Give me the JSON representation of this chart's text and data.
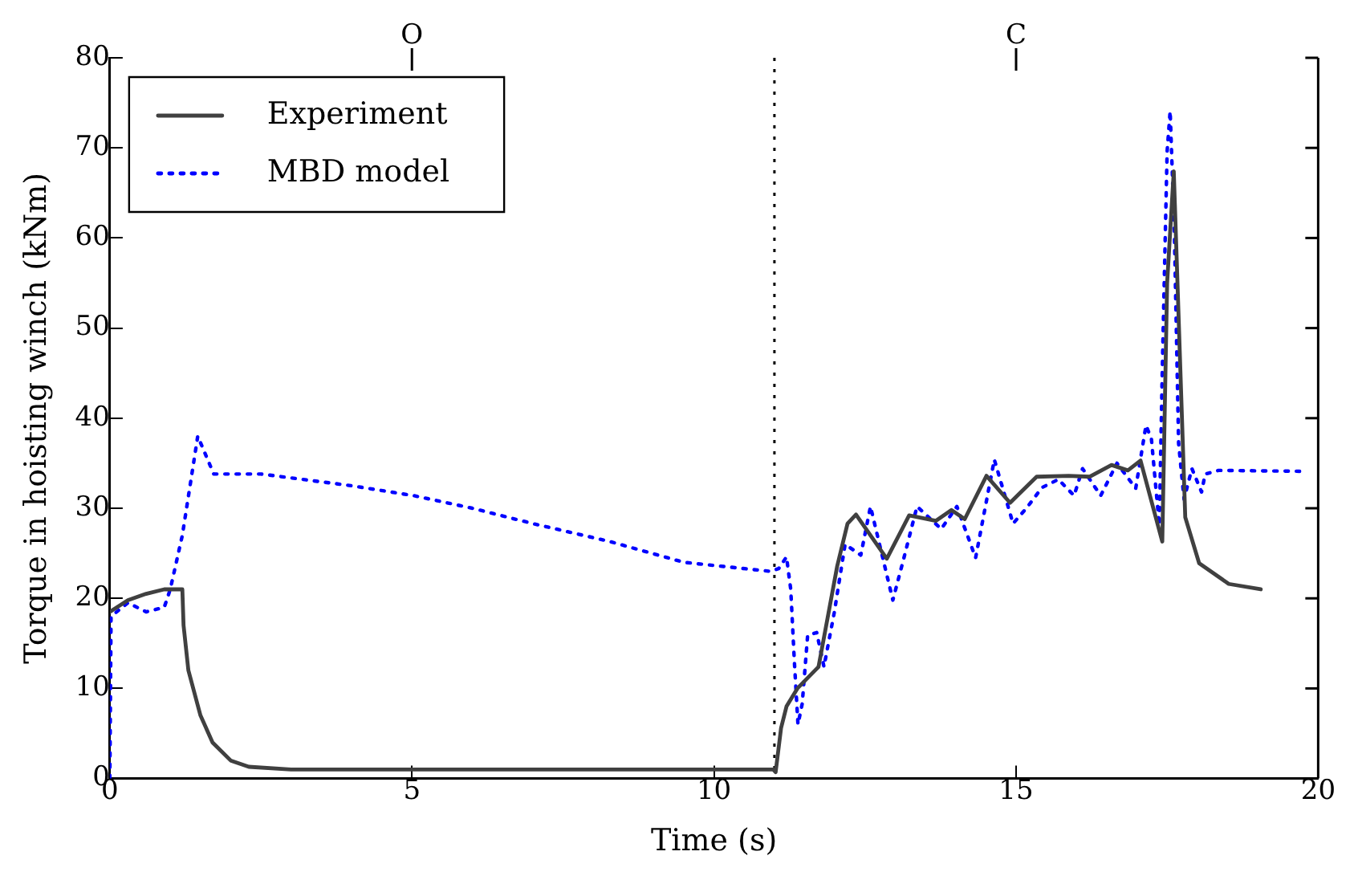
{
  "chart_data": {
    "type": "line",
    "xlabel": "Time (s)",
    "ylabel": "Torque in hoisting winch (kNm)",
    "xlim": [
      0,
      20
    ],
    "xticks": [
      0,
      5,
      10,
      15,
      20
    ],
    "ylim": [
      0,
      80
    ],
    "yticks": [
      0,
      10,
      20,
      30,
      40,
      50,
      60,
      70,
      80
    ],
    "annotations": [
      "O",
      "C"
    ],
    "grid": false,
    "legend": "top left",
    "marker": "none",
    "ref_lines": [
      {
        "axis": "x",
        "value": 11,
        "label": null,
        "color": "#000000",
        "line_style": "dotted"
      }
    ],
    "series": [
      {
        "name": "Experiment",
        "color": "#404040",
        "line_style": "solid",
        "x": [
          0,
          0.3,
          0.6,
          0.9,
          1.0,
          1.2,
          1.22,
          1.3,
          1.5,
          1.7,
          2.0,
          2.3,
          3,
          5,
          8,
          10,
          10.98,
          11.02,
          11.11,
          11.2,
          11.38,
          11.73,
          12.04,
          12.21,
          12.35,
          12.86,
          13.23,
          13.67,
          13.93,
          14.15,
          14.51,
          14.9,
          15.34,
          15.87,
          16.22,
          16.58,
          16.85,
          17.06,
          17.42,
          17.5,
          17.61,
          17.8,
          18.03,
          18.52,
          19.05
        ],
        "values": [
          18.5,
          19.8,
          20.5,
          21,
          21,
          21,
          17,
          12,
          7,
          4,
          2,
          1.3,
          1,
          1,
          1,
          1,
          1,
          0.7,
          5.6,
          8,
          10,
          12.4,
          23.6,
          28.3,
          29.3,
          24.4,
          29.2,
          28.6,
          29.8,
          28.8,
          33.6,
          30.6,
          33.5,
          33.6,
          33.5,
          34.8,
          34.2,
          35.3,
          26.3,
          55,
          67.4,
          29,
          23.9,
          21.6,
          21
        ]
      },
      {
        "name": "MBD model",
        "color": "#0000ff",
        "line_style": "dotted",
        "x": [
          0,
          0.02,
          0.3,
          0.6,
          0.9,
          1.0,
          1.2,
          1.455,
          1.72,
          2.5,
          4,
          5.03,
          6,
          7,
          8.28,
          9.5,
          10.93,
          11.07,
          11.2,
          11.27,
          11.33,
          11.39,
          11.46,
          11.55,
          11.7,
          11.82,
          11.99,
          12.17,
          12.43,
          12.59,
          12.96,
          13.14,
          13.36,
          13.76,
          14.02,
          14.33,
          14.64,
          14.95,
          15.17,
          15.43,
          15.7,
          15.96,
          16.1,
          16.4,
          16.67,
          16.98,
          17.15,
          17.24,
          17.37,
          17.42,
          17.5,
          17.55,
          17.62,
          17.69,
          17.78,
          17.91,
          18.07,
          18.13,
          18.35,
          19.75
        ],
        "values": [
          0,
          18,
          19.5,
          18.5,
          19,
          21,
          27,
          38,
          33.8,
          33.8,
          32.5,
          31.4,
          30,
          28.3,
          26.3,
          24,
          23,
          23.3,
          24.6,
          21,
          13,
          6,
          8.3,
          15.9,
          16.2,
          12.4,
          18.4,
          26,
          24.8,
          30.2,
          19.8,
          24.4,
          30.2,
          27.7,
          30.2,
          24.5,
          35.4,
          28.3,
          30,
          32.3,
          33.2,
          31.4,
          34.4,
          31.4,
          35,
          32.2,
          39.2,
          37.7,
          28.1,
          45.4,
          69.6,
          74.1,
          60.7,
          37.2,
          31,
          34.4,
          31.8,
          33.8,
          34.2,
          34.1
        ]
      }
    ]
  }
}
